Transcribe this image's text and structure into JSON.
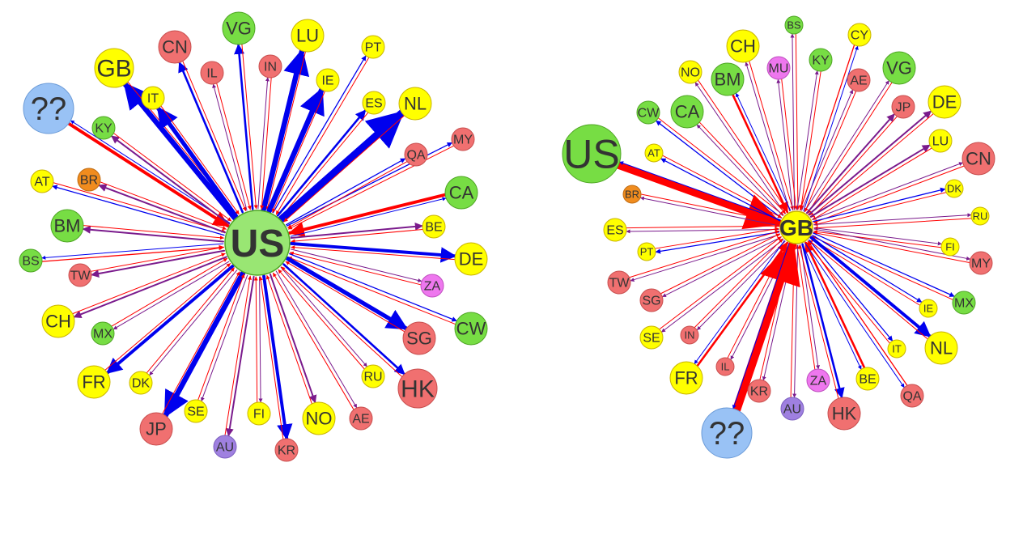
{
  "colors": {
    "outflow": "#0000ee",
    "inflow": "#ff0000",
    "mixed": "#7a1a8c",
    "yellow": "#ffff00",
    "red": "#f07070",
    "green": "#77dd44",
    "orange": "#f08c1e",
    "blue_node": "#99c2f5",
    "violet": "#9f80e0",
    "pink": "#ee77ee"
  },
  "panels": [
    {
      "center": {
        "code": "US",
        "color": "green_light"
      },
      "nodes": [
        {
          "code": "GB",
          "color": "yellow",
          "size": "large",
          "flow": "outflow",
          "weight": 5
        },
        {
          "code": "??",
          "color": "blue_node",
          "size": "xlarge",
          "flow": "inflow",
          "weight": 3
        },
        {
          "code": "CN",
          "color": "red",
          "size": "medium",
          "flow": "outflow",
          "weight": 2
        },
        {
          "code": "VG",
          "color": "green",
          "size": "medium",
          "flow": "outflow",
          "weight": 2
        },
        {
          "code": "LU",
          "color": "yellow",
          "size": "medium",
          "flow": "outflow",
          "weight": 5
        },
        {
          "code": "PT",
          "color": "yellow",
          "size": "small",
          "flow": "outflow",
          "weight": 1
        },
        {
          "code": "IL",
          "color": "red",
          "size": "small",
          "flow": "mixed",
          "weight": 1
        },
        {
          "code": "IN",
          "color": "red",
          "size": "small",
          "flow": "mixed",
          "weight": 1
        },
        {
          "code": "IE",
          "color": "yellow",
          "size": "small",
          "flow": "outflow",
          "weight": 5
        },
        {
          "code": "IT",
          "color": "yellow",
          "size": "small",
          "flow": "outflow",
          "weight": 4
        },
        {
          "code": "ES",
          "color": "yellow",
          "size": "small",
          "flow": "outflow",
          "weight": 2
        },
        {
          "code": "NL",
          "color": "yellow",
          "size": "medium",
          "flow": "outflow",
          "weight": 7
        },
        {
          "code": "KY",
          "color": "green",
          "size": "small",
          "flow": "mixed",
          "weight": 2
        },
        {
          "code": "MY",
          "color": "red",
          "size": "small",
          "flow": "outflow",
          "weight": 1
        },
        {
          "code": "QA",
          "color": "red",
          "size": "small",
          "flow": "outflow",
          "weight": 1
        },
        {
          "code": "AT",
          "color": "yellow",
          "size": "small",
          "flow": "outflow",
          "weight": 1
        },
        {
          "code": "BR",
          "color": "orange",
          "size": "small",
          "flow": "mixed",
          "weight": 2
        },
        {
          "code": "CA",
          "color": "green",
          "size": "medium",
          "flow": "inflow",
          "weight": 3
        },
        {
          "code": "BE",
          "color": "yellow",
          "size": "small",
          "flow": "mixed",
          "weight": 2
        },
        {
          "code": "BM",
          "color": "green",
          "size": "medium",
          "flow": "mixed",
          "weight": 2
        },
        {
          "code": "BS",
          "color": "green",
          "size": "small",
          "flow": "inflow",
          "weight": 1
        },
        {
          "code": "DE",
          "color": "yellow",
          "size": "medium",
          "flow": "outflow",
          "weight": 3
        },
        {
          "code": "TW",
          "color": "red",
          "size": "small",
          "flow": "mixed",
          "weight": 2
        },
        {
          "code": "ZA",
          "color": "pink",
          "size": "small",
          "flow": "mixed",
          "weight": 1
        },
        {
          "code": "CH",
          "color": "yellow",
          "size": "medium",
          "flow": "mixed",
          "weight": 2
        },
        {
          "code": "CW",
          "color": "green",
          "size": "medium",
          "flow": "outflow",
          "weight": 1
        },
        {
          "code": "MX",
          "color": "green",
          "size": "small",
          "flow": "mixed",
          "weight": 1
        },
        {
          "code": "SG",
          "color": "red",
          "size": "medium",
          "flow": "outflow",
          "weight": 4
        },
        {
          "code": "FR",
          "color": "yellow",
          "size": "medium",
          "flow": "outflow",
          "weight": 3
        },
        {
          "code": "DK",
          "color": "yellow",
          "size": "small",
          "flow": "mixed",
          "weight": 1
        },
        {
          "code": "RU",
          "color": "yellow",
          "size": "small",
          "flow": "mixed",
          "weight": 1
        },
        {
          "code": "HK",
          "color": "red",
          "size": "large",
          "flow": "outflow",
          "weight": 2
        },
        {
          "code": "JP",
          "color": "red",
          "size": "medium",
          "flow": "outflow",
          "weight": 5
        },
        {
          "code": "SE",
          "color": "yellow",
          "size": "small",
          "flow": "mixed",
          "weight": 1
        },
        {
          "code": "FI",
          "color": "yellow",
          "size": "small",
          "flow": "mixed",
          "weight": 1
        },
        {
          "code": "NO",
          "color": "yellow",
          "size": "medium",
          "flow": "mixed",
          "weight": 2
        },
        {
          "code": "AE",
          "color": "red",
          "size": "small",
          "flow": "mixed",
          "weight": 1
        },
        {
          "code": "AU",
          "color": "violet",
          "size": "small",
          "flow": "mixed",
          "weight": 2
        },
        {
          "code": "KR",
          "color": "red",
          "size": "small",
          "flow": "outflow",
          "weight": 3
        }
      ]
    },
    {
      "center": {
        "code": "GB",
        "color": "yellow"
      },
      "nodes": [
        {
          "code": "BS",
          "color": "green",
          "size": "xsmall",
          "flow": "mixed",
          "weight": 1
        },
        {
          "code": "CY",
          "color": "yellow",
          "size": "small",
          "flow": "inflow",
          "weight": 1
        },
        {
          "code": "CH",
          "color": "yellow",
          "size": "medium",
          "flow": "mixed",
          "weight": 1
        },
        {
          "code": "NO",
          "color": "yellow",
          "size": "small",
          "flow": "mixed",
          "weight": 1
        },
        {
          "code": "MU",
          "color": "pink",
          "size": "small",
          "flow": "mixed",
          "weight": 1
        },
        {
          "code": "KY",
          "color": "green",
          "size": "small",
          "flow": "mixed",
          "weight": 1
        },
        {
          "code": "VG",
          "color": "green",
          "size": "medium",
          "flow": "mixed",
          "weight": 1
        },
        {
          "code": "BM",
          "color": "green",
          "size": "medium",
          "flow": "inflow",
          "weight": 2
        },
        {
          "code": "AE",
          "color": "red",
          "size": "small",
          "flow": "mixed",
          "weight": 1
        },
        {
          "code": "JP",
          "color": "red",
          "size": "small",
          "flow": "mixed",
          "weight": 2
        },
        {
          "code": "DE",
          "color": "yellow",
          "size": "medium",
          "flow": "mixed",
          "weight": 2
        },
        {
          "code": "CW",
          "color": "green",
          "size": "small",
          "flow": "outflow",
          "weight": 1
        },
        {
          "code": "CA",
          "color": "green",
          "size": "medium",
          "flow": "mixed",
          "weight": 1
        },
        {
          "code": "US",
          "color": "green",
          "size": "xxlarge",
          "flow": "inflow",
          "weight": 7
        },
        {
          "code": "AT",
          "color": "yellow",
          "size": "xsmall",
          "flow": "outflow",
          "weight": 1
        },
        {
          "code": "LU",
          "color": "yellow",
          "size": "small",
          "flow": "mixed",
          "weight": 2
        },
        {
          "code": "CN",
          "color": "red",
          "size": "medium",
          "flow": "mixed",
          "weight": 1
        },
        {
          "code": "DK",
          "color": "yellow",
          "size": "xsmall",
          "flow": "outflow",
          "weight": 1
        },
        {
          "code": "BR",
          "color": "orange",
          "size": "xsmall",
          "flow": "mixed",
          "weight": 1
        },
        {
          "code": "RU",
          "color": "yellow",
          "size": "xsmall",
          "flow": "mixed",
          "weight": 1
        },
        {
          "code": "ES",
          "color": "yellow",
          "size": "small",
          "flow": "mixed",
          "weight": 1
        },
        {
          "code": "FI",
          "color": "yellow",
          "size": "xsmall",
          "flow": "mixed",
          "weight": 1
        },
        {
          "code": "PT",
          "color": "yellow",
          "size": "xsmall",
          "flow": "outflow",
          "weight": 1
        },
        {
          "code": "MY",
          "color": "red",
          "size": "small",
          "flow": "mixed",
          "weight": 1
        },
        {
          "code": "TW",
          "color": "red",
          "size": "small",
          "flow": "mixed",
          "weight": 1
        },
        {
          "code": "SG",
          "color": "red",
          "size": "small",
          "flow": "mixed",
          "weight": 1
        },
        {
          "code": "MX",
          "color": "green",
          "size": "small",
          "flow": "outflow",
          "weight": 1
        },
        {
          "code": "IE",
          "color": "yellow",
          "size": "xsmall",
          "flow": "outflow",
          "weight": 1
        },
        {
          "code": "SE",
          "color": "yellow",
          "size": "small",
          "flow": "mixed",
          "weight": 1
        },
        {
          "code": "IN",
          "color": "red",
          "size": "xsmall",
          "flow": "mixed",
          "weight": 1
        },
        {
          "code": "NL",
          "color": "yellow",
          "size": "medium",
          "flow": "outflow",
          "weight": 3
        },
        {
          "code": "IT",
          "color": "yellow",
          "size": "xsmall",
          "flow": "outflow",
          "weight": 1
        },
        {
          "code": "FR",
          "color": "yellow",
          "size": "medium",
          "flow": "inflow",
          "weight": 2
        },
        {
          "code": "IL",
          "color": "red",
          "size": "xsmall",
          "flow": "mixed",
          "weight": 1
        },
        {
          "code": "KR",
          "color": "red",
          "size": "small",
          "flow": "mixed",
          "weight": 1
        },
        {
          "code": "ZA",
          "color": "pink",
          "size": "small",
          "flow": "mixed",
          "weight": 1
        },
        {
          "code": "BE",
          "color": "yellow",
          "size": "small",
          "flow": "inflow",
          "weight": 2
        },
        {
          "code": "QA",
          "color": "red",
          "size": "small",
          "flow": "inflow",
          "weight": 1
        },
        {
          "code": "AU",
          "color": "violet",
          "size": "small",
          "flow": "mixed",
          "weight": 1
        },
        {
          "code": "HK",
          "color": "red",
          "size": "medium",
          "flow": "outflow",
          "weight": 2
        },
        {
          "code": "??",
          "color": "blue_node",
          "size": "xlarge",
          "flow": "inflow",
          "weight": 8
        }
      ]
    }
  ]
}
